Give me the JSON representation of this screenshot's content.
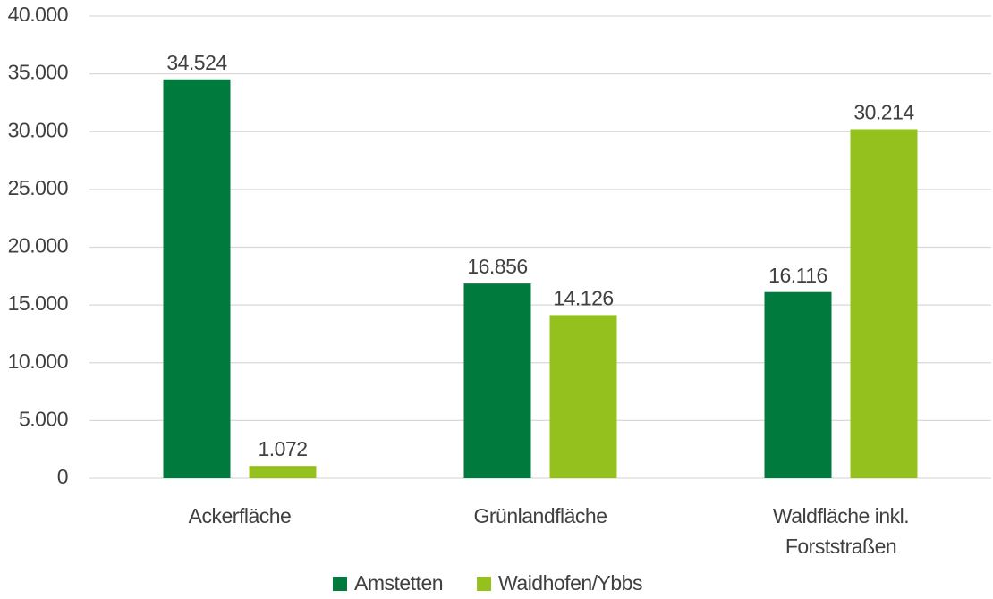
{
  "chart_data": {
    "type": "bar",
    "categories": [
      "Ackerfläche",
      "Grünlandfläche",
      "Waldfläche inkl. Forststraßen"
    ],
    "series": [
      {
        "name": "Amstetten",
        "color": "#007a3d",
        "values": [
          34524,
          16856,
          16116
        ],
        "value_labels": [
          "34.524",
          "16.856",
          "16.116"
        ]
      },
      {
        "name": "Waidhofen/Ybbs",
        "color": "#95c11f",
        "values": [
          1072,
          14126,
          30214
        ],
        "value_labels": [
          "1.072",
          "14.126",
          "30.214"
        ]
      }
    ],
    "ylim": [
      0,
      40000
    ],
    "yticks": [
      0,
      {
        "value": 5000,
        "label": "5.000"
      },
      {
        "value": 10000,
        "label": "10.000"
      },
      {
        "value": 15000,
        "label": "15.000"
      },
      {
        "value": 20000,
        "label": "20.000"
      },
      {
        "value": 25000,
        "label": "25.000"
      },
      {
        "value": 30000,
        "label": "30.000"
      },
      {
        "value": 35000,
        "label": "35.000"
      },
      {
        "value": 40000,
        "label": "40.000"
      }
    ],
    "grid": true,
    "legend": "bottom"
  }
}
